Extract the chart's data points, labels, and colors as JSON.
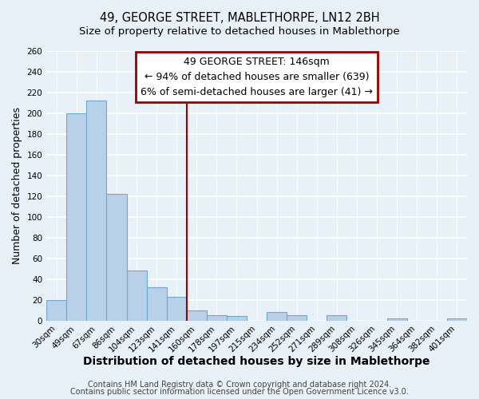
{
  "title": "49, GEORGE STREET, MABLETHORPE, LN12 2BH",
  "subtitle": "Size of property relative to detached houses in Mablethorpe",
  "xlabel": "Distribution of detached houses by size in Mablethorpe",
  "ylabel": "Number of detached properties",
  "bar_color": "#b8d0e8",
  "bar_edge_color": "#6aaad4",
  "background_color": "#e8f0f8",
  "grid_color": "#ffffff",
  "categories": [
    "30sqm",
    "49sqm",
    "67sqm",
    "86sqm",
    "104sqm",
    "123sqm",
    "141sqm",
    "160sqm",
    "178sqm",
    "197sqm",
    "215sqm",
    "234sqm",
    "252sqm",
    "271sqm",
    "289sqm",
    "308sqm",
    "326sqm",
    "345sqm",
    "364sqm",
    "382sqm",
    "401sqm"
  ],
  "values": [
    20,
    200,
    212,
    122,
    48,
    32,
    23,
    10,
    5,
    4,
    0,
    8,
    5,
    0,
    5,
    0,
    0,
    2,
    0,
    0,
    2
  ],
  "ylim": [
    0,
    260
  ],
  "yticks": [
    0,
    20,
    40,
    60,
    80,
    100,
    120,
    140,
    160,
    180,
    200,
    220,
    240,
    260
  ],
  "vline_x": 7.0,
  "vline_color": "#990000",
  "annotation_title": "49 GEORGE STREET: 146sqm",
  "annotation_line1": "← 94% of detached houses are smaller (639)",
  "annotation_line2": "6% of semi-detached houses are larger (41) →",
  "annotation_box_color": "#ffffff",
  "annotation_box_edge": "#990000",
  "footer_line1": "Contains HM Land Registry data © Crown copyright and database right 2024.",
  "footer_line2": "Contains public sector information licensed under the Open Government Licence v3.0.",
  "title_fontsize": 10.5,
  "subtitle_fontsize": 9.5,
  "xlabel_fontsize": 10,
  "ylabel_fontsize": 9,
  "tick_fontsize": 7.5,
  "footer_fontsize": 7,
  "annotation_fontsize": 9
}
